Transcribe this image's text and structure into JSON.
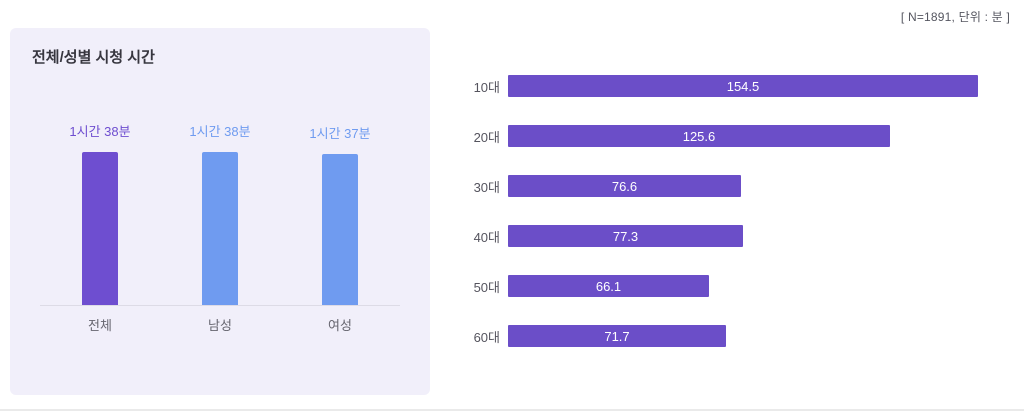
{
  "annotation": "[ N=1891, 단위 : 분 ]",
  "chart_data": [
    {
      "type": "bar",
      "orientation": "vertical",
      "title": "전체/성별 시청 시간",
      "categories": [
        "전체",
        "남성",
        "여성"
      ],
      "values": [
        98,
        98,
        97
      ],
      "value_labels": [
        "1시간 38분",
        "1시간 38분",
        "1시간 37분"
      ],
      "unit": "분",
      "colors": [
        "#6e4ed0",
        "#6f9bf0",
        "#6f9bf0"
      ],
      "background": "#f1effa",
      "grid": false,
      "legend": "none"
    },
    {
      "type": "bar",
      "orientation": "horizontal",
      "title": "",
      "categories": [
        "10대",
        "20대",
        "30대",
        "40대",
        "50대",
        "60대"
      ],
      "values": [
        154.5,
        125.6,
        76.6,
        77.3,
        66.1,
        71.7
      ],
      "xlim": [
        0,
        160
      ],
      "unit": "분",
      "n": 1891,
      "bar_color": "#6b4ec8",
      "value_label_color": "#ffffff",
      "grid": false,
      "legend": "none"
    }
  ]
}
